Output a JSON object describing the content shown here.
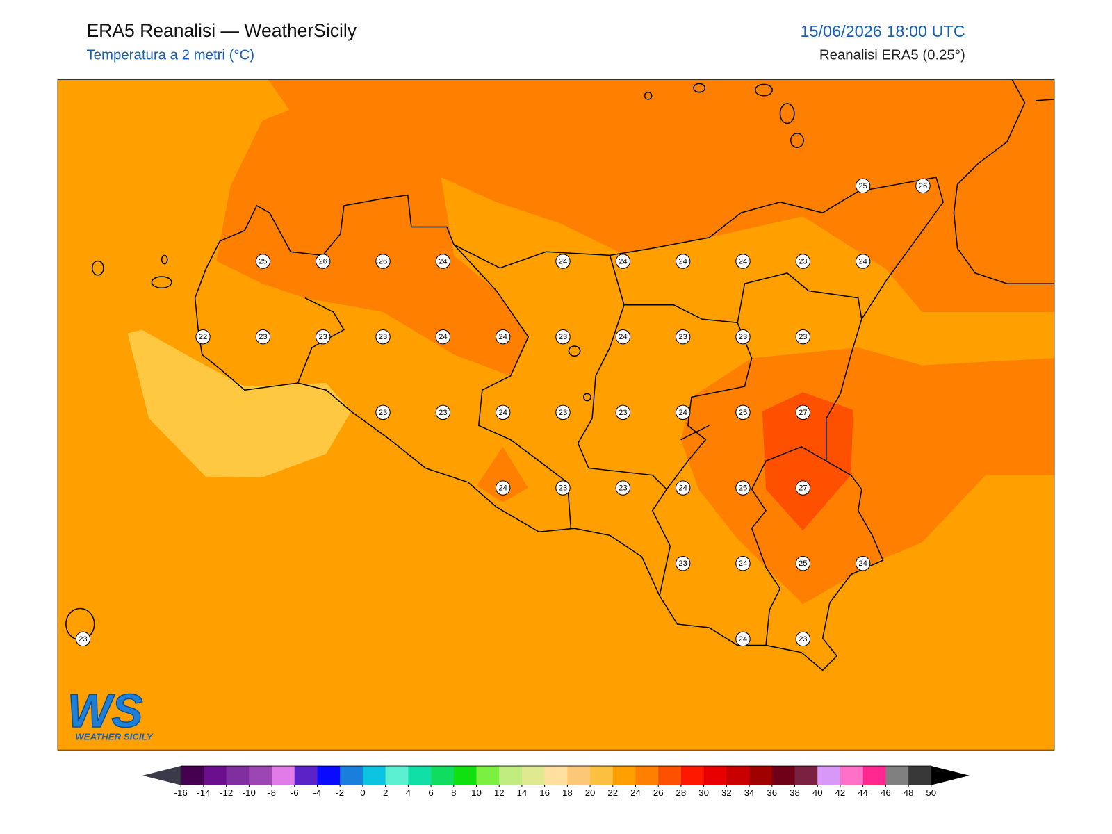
{
  "header": {
    "title": "ERA5 Reanalisi — WeatherSicily",
    "subtitle": "Temperatura a 2 metri (°C)",
    "date": "15/06/2026 18:00 UTC",
    "source": "Reanalisi ERA5 (0.25°)"
  },
  "map": {
    "grid": [
      [
        null,
        null,
        null,
        null,
        null,
        null,
        null,
        null,
        null,
        null,
        null,
        null,
        null,
        25,
        26
      ],
      [
        null,
        null,
        null,
        25,
        26,
        26,
        24,
        null,
        24,
        24,
        24,
        24,
        23,
        24,
        null
      ],
      [
        null,
        null,
        22,
        23,
        23,
        23,
        24,
        24,
        23,
        24,
        23,
        23,
        23,
        null,
        null
      ],
      [
        null,
        null,
        null,
        null,
        null,
        23,
        23,
        24,
        23,
        23,
        24,
        25,
        27,
        null,
        null
      ],
      [
        null,
        null,
        null,
        null,
        null,
        null,
        null,
        24,
        23,
        23,
        24,
        25,
        27,
        null,
        null
      ],
      [
        null,
        null,
        null,
        null,
        null,
        null,
        null,
        null,
        null,
        null,
        23,
        24,
        25,
        24,
        null
      ],
      [
        23,
        null,
        null,
        null,
        null,
        null,
        null,
        null,
        null,
        null,
        null,
        24,
        23,
        null,
        null
      ]
    ]
  },
  "colorbar": {
    "ticks": [
      -16,
      -14,
      -12,
      -10,
      -8,
      -6,
      -4,
      -2,
      0,
      2,
      4,
      6,
      8,
      10,
      12,
      14,
      16,
      18,
      20,
      22,
      24,
      26,
      28,
      30,
      32,
      34,
      36,
      38,
      40,
      42,
      44,
      46,
      48,
      50
    ],
    "colors": [
      "#450050",
      "#6b0f8f",
      "#7f2fa0",
      "#9c46b4",
      "#e07be8",
      "#5b22c8",
      "#0a0aff",
      "#1a7fdc",
      "#0cc4e2",
      "#5cf0d2",
      "#10e0a8",
      "#10dc60",
      "#10e010",
      "#7cf040",
      "#c0ec80",
      "#e0e890",
      "#ffe0a0",
      "#fcc878",
      "#fcc040",
      "#ffa000",
      "#ff8000",
      "#ff5000",
      "#ff1800",
      "#e80000",
      "#c80000",
      "#a00000",
      "#700018",
      "#7a2040",
      "#d898f8",
      "#ff70c8",
      "#ff2890",
      "#808080",
      "#383838"
    ],
    "under": "#3a3a4a",
    "over": "#000000"
  },
  "logo": {
    "text": "WS",
    "subtitle": "WEATHER SICILY"
  }
}
